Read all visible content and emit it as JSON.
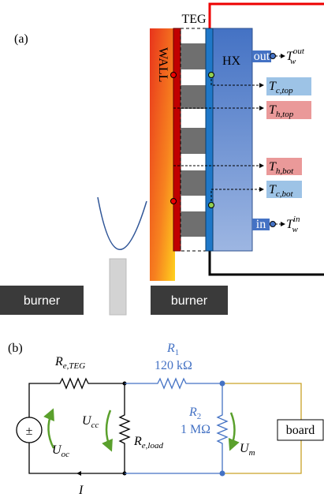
{
  "panel_a": {
    "label": "(a)",
    "teg": "TEG",
    "wall": "WALL",
    "hx": "HX",
    "outlet": "out",
    "inlet": "in",
    "burners": [
      "burner",
      "burner"
    ],
    "t_w_out": {
      "symbol": "T",
      "sub": "w",
      "sup": "out"
    },
    "t_c_top": {
      "symbol": "T",
      "sub": "c,top"
    },
    "t_h_top": {
      "symbol": "T",
      "sub": "h,top"
    },
    "t_h_bot": {
      "symbol": "T",
      "sub": "h,bot"
    },
    "t_c_bot": {
      "symbol": "T",
      "sub": "c,bot"
    },
    "t_w_in": {
      "symbol": "T",
      "sub": "w",
      "sup": "in"
    }
  },
  "panel_b": {
    "label": "(b)",
    "source": "±",
    "r_teg": {
      "symbol": "R",
      "sub": "e,TEG"
    },
    "r1": {
      "symbol": "R",
      "sub": "1",
      "value": "120 kΩ"
    },
    "r2": {
      "symbol": "R",
      "sub": "2",
      "value": "1 MΩ"
    },
    "r_load": {
      "symbol": "R",
      "sub": "e,load"
    },
    "u_cc": {
      "symbol": "U",
      "sub": "cc"
    },
    "u_oc": {
      "symbol": "U",
      "sub": "oc"
    },
    "u_m": {
      "symbol": "U",
      "sub": "m"
    },
    "board": "board",
    "current": "I"
  }
}
